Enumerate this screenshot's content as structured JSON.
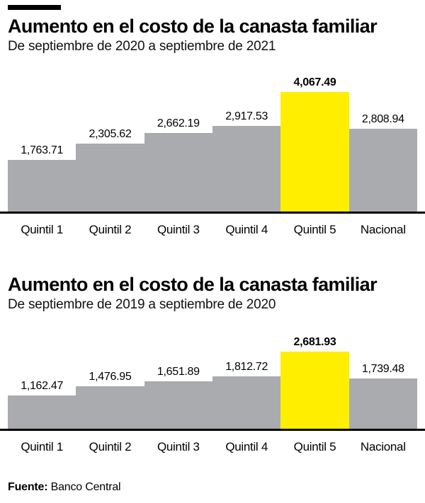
{
  "page": {
    "source_label": "Fuente:",
    "source_value": " Banco Central"
  },
  "colors": {
    "bar_gray": "#a9abae",
    "bar_highlight": "#ffee00",
    "axis": "#000000",
    "text": "#000000"
  },
  "chart_data": [
    {
      "type": "bar",
      "title": "Aumento en el costo de la canasta familiar",
      "subtitle": "De septiembre de 2020 a septiembre de 2021",
      "categories": [
        "Quintil 1",
        "Quintil 2",
        "Quintil 3",
        "Quintil 4",
        "Quintil 5",
        "Nacional"
      ],
      "values": [
        1763.71,
        2305.62,
        2662.19,
        2917.53,
        4067.49,
        2808.94
      ],
      "value_labels": [
        "1,763.71",
        "2,305.62",
        "2,662.19",
        "2,917.53",
        "4,067.49",
        "2,808.94"
      ],
      "highlight_index": 4,
      "xlabel": "",
      "ylabel": "",
      "ylim": [
        0,
        4067.49
      ],
      "grid": false,
      "legend": false,
      "layout": "adjacent-step-bars, value labels above bars, no y-axis"
    },
    {
      "type": "bar",
      "title": "Aumento en el costo de la canasta familiar",
      "subtitle": "De septiembre de 2019 a septiembre de 2020",
      "categories": [
        "Quintil 1",
        "Quintil 2",
        "Quintil 3",
        "Quintil 4",
        "Quintil 5",
        "Nacional"
      ],
      "values": [
        1162.47,
        1476.95,
        1651.89,
        1812.72,
        2681.93,
        1739.48
      ],
      "value_labels": [
        "1,162.47",
        "1,476.95",
        "1,651.89",
        "1,812.72",
        "2,681.93",
        "1,739.48"
      ],
      "highlight_index": 4,
      "xlabel": "",
      "ylabel": "",
      "ylim": [
        0,
        2681.93
      ],
      "grid": false,
      "legend": false,
      "layout": "adjacent-step-bars, value labels above bars, no y-axis"
    }
  ]
}
